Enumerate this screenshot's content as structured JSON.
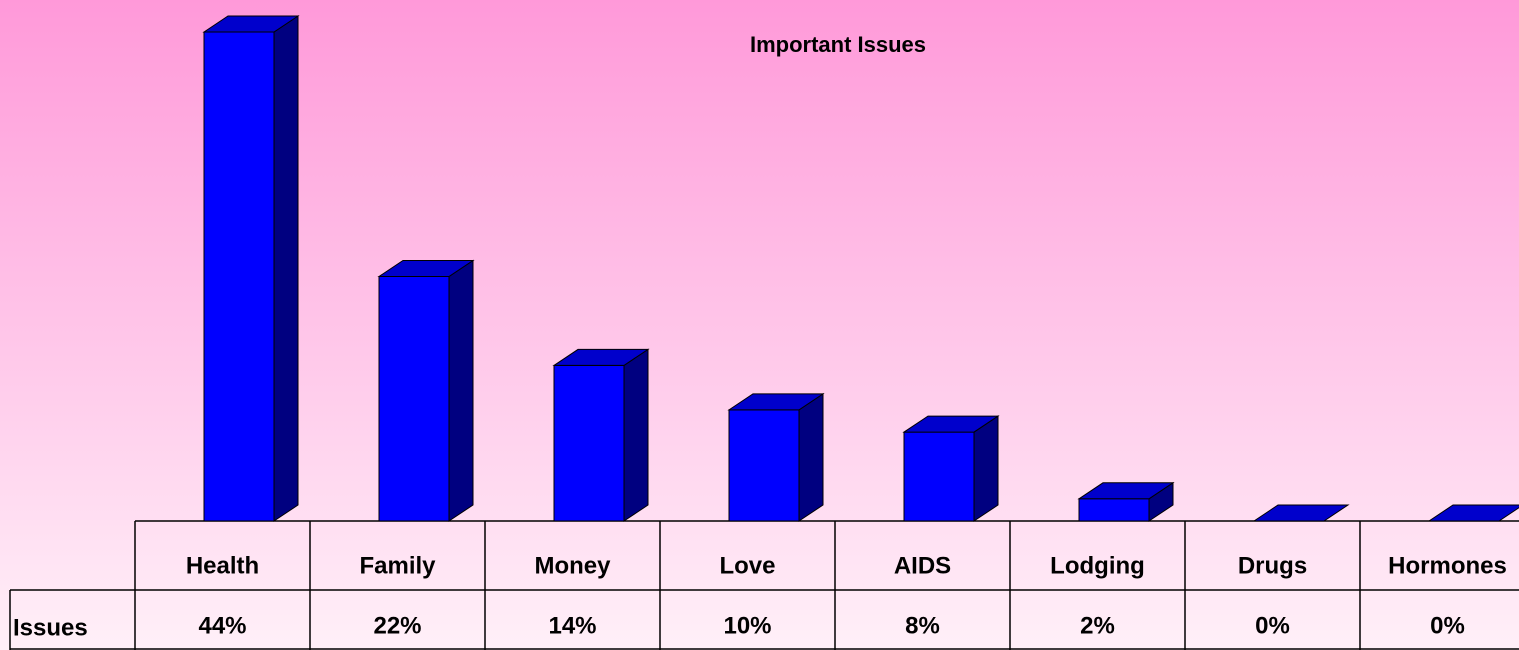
{
  "chart_data": {
    "type": "bar3d",
    "title": "Important Issues",
    "categories": [
      "Health",
      "Family",
      "Money",
      "Love",
      "AIDS",
      "Lodging",
      "Drugs",
      "Hormones"
    ],
    "series": [
      {
        "name": "Issues",
        "color": "#0000ff",
        "values": [
          44,
          22,
          14,
          10,
          8,
          2,
          0,
          0
        ],
        "value_labels": [
          "44%",
          "22%",
          "14%",
          "10%",
          "8%",
          "2%",
          "0%",
          "0%"
        ]
      }
    ]
  }
}
